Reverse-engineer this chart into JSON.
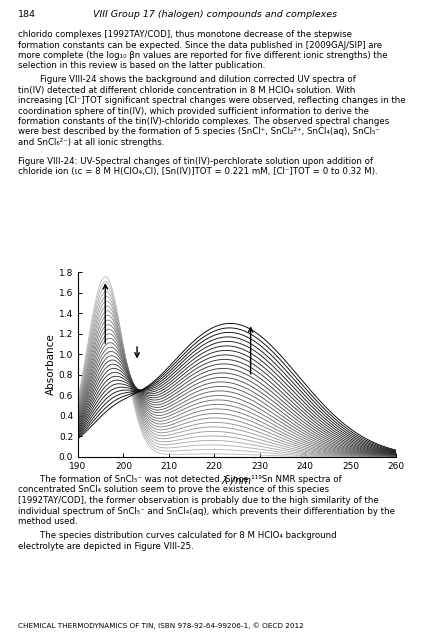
{
  "x_min": 190,
  "x_max": 260,
  "y_min": 0,
  "y_max": 1.8,
  "x_ticks": [
    190,
    200,
    210,
    220,
    230,
    240,
    250,
    260
  ],
  "y_ticks": [
    0,
    0.2,
    0.4,
    0.6,
    0.8,
    1.0,
    1.2,
    1.4,
    1.6,
    1.8
  ],
  "xlabel": "$\\lambda$ /nm",
  "ylabel": "Absorbance",
  "n_curves": 30,
  "background_color": "#ffffff",
  "fig_width": 4.31,
  "fig_height": 6.4,
  "dpi": 100,
  "page_number": "184",
  "header_text": "VIII Group 17 (halogen) compounds and complexes",
  "footer_text": "CHEMICAL THERMODYNAMICS OF TIN, ISBN 978-92-64-99206-1, © OECD 2012"
}
